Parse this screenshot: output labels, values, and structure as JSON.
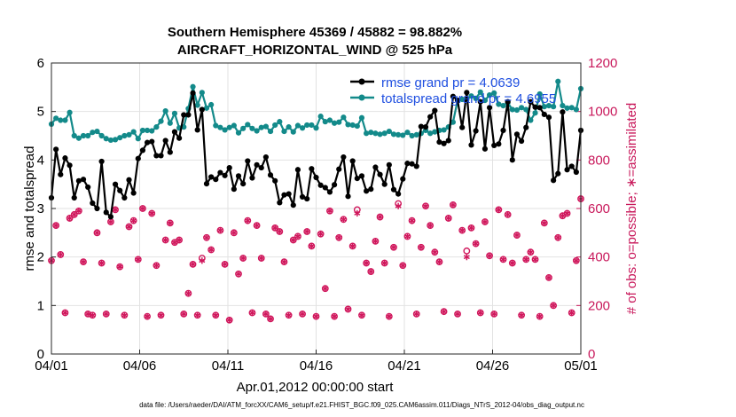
{
  "chart_data": {
    "type": "line",
    "title_line1": "Southern Hemisphere 45369 / 45882 = 98.882%",
    "title_line2": "AIRCRAFT_HORIZONTAL_WIND @ 525 hPa",
    "xlabel": "Apr.01,2012 00:00:00 start",
    "ylabel_left": "rmse and totalspread",
    "ylabel_right": "# of obs: o=possible; ∗=assimilated",
    "footer": "data file: /Users/raeder/DAI/ATM_forcXX/CAM6_setup/f.e21.FHIST_BGC.f09_025.CAM6assim.011/Diags_NTrS_2012-04/obs_diag_output.nc",
    "x_ticks": [
      "04/01",
      "04/06",
      "04/11",
      "04/16",
      "04/21",
      "04/26",
      "05/01"
    ],
    "x_tick_days": [
      0,
      5,
      10,
      15,
      20,
      25,
      30
    ],
    "xlim_days": [
      0,
      30
    ],
    "ylim_left": [
      0,
      6
    ],
    "y_ticks_left": [
      "0",
      "1",
      "2",
      "3",
      "4",
      "5",
      "6"
    ],
    "ylim_right": [
      0,
      1200
    ],
    "y_ticks_right": [
      "0",
      "200",
      "400",
      "600",
      "800",
      "1000",
      "1200"
    ],
    "grid": true,
    "legend_position": "top-right",
    "colors": {
      "rmse": "#000000",
      "spread": "#138a8a",
      "obs": "#d0175c"
    },
    "series": [
      {
        "name": "rmse grand pr = 4.0639",
        "axis": "left",
        "values": [
          3.22,
          4.22,
          3.7,
          4.04,
          3.89,
          3.22,
          3.57,
          3.6,
          3.44,
          3.11,
          3.0,
          3.97,
          2.92,
          2.83,
          3.5,
          3.37,
          3.22,
          3.59,
          3.32,
          4.03,
          4.2,
          4.36,
          4.38,
          4.09,
          4.09,
          4.4,
          4.16,
          4.58,
          4.45,
          4.93,
          4.93,
          5.38,
          4.62,
          5.04,
          3.51,
          3.65,
          3.6,
          3.74,
          3.68,
          3.84,
          3.4,
          3.67,
          3.51,
          3.98,
          3.63,
          3.9,
          3.84,
          4.06,
          3.69,
          3.57,
          3.12,
          3.28,
          3.3,
          3.07,
          3.8,
          3.24,
          3.2,
          3.82,
          3.64,
          3.48,
          3.43,
          3.34,
          3.49,
          3.81,
          4.06,
          3.25,
          3.98,
          3.62,
          3.67,
          3.36,
          3.4,
          3.85,
          3.7,
          3.5,
          3.9,
          3.39,
          3.3,
          3.61,
          3.93,
          3.92,
          3.87,
          4.69,
          4.68,
          4.89,
          5.02,
          4.37,
          4.34,
          4.4,
          5.31,
          5.23,
          4.67,
          5.39,
          4.31,
          4.6,
          5.2,
          4.23,
          5.08,
          4.3,
          4.33,
          4.61,
          5.2,
          4.0,
          4.53,
          4.39,
          4.67,
          5.2,
          5.09,
          5.08,
          4.94,
          4.88,
          3.58,
          3.72,
          4.99,
          3.8,
          3.87,
          3.75,
          4.61
        ]
      },
      {
        "name": "totalspread grand pr = 4.6955",
        "axis": "left",
        "values": [
          4.74,
          4.86,
          4.82,
          4.82,
          4.98,
          4.5,
          4.45,
          4.5,
          4.5,
          4.57,
          4.59,
          4.5,
          4.44,
          4.41,
          4.42,
          4.46,
          4.5,
          4.52,
          4.58,
          4.44,
          4.61,
          4.61,
          4.6,
          4.68,
          4.8,
          5.01,
          4.76,
          4.96,
          4.66,
          4.68,
          5.06,
          5.51,
          5.13,
          5.39,
          5.07,
          5.14,
          4.71,
          4.67,
          4.62,
          4.67,
          4.71,
          4.56,
          4.65,
          4.73,
          4.65,
          4.6,
          4.67,
          4.69,
          4.59,
          4.72,
          4.79,
          4.59,
          4.68,
          4.58,
          4.71,
          4.66,
          4.72,
          4.72,
          4.66,
          4.9,
          4.79,
          4.82,
          4.76,
          4.78,
          4.88,
          4.73,
          4.72,
          4.7,
          4.87,
          4.55,
          4.57,
          4.55,
          4.53,
          4.55,
          4.59,
          4.53,
          4.52,
          4.51,
          4.57,
          4.5,
          4.52,
          4.55,
          4.61,
          4.55,
          4.58,
          4.61,
          4.62,
          4.68,
          4.78,
          5.23,
          5.25,
          5.24,
          5.32,
          5.27,
          5.4,
          5.23,
          5.34,
          5.38,
          5.15,
          5.12,
          5.18,
          5.04,
          5.03,
          5.08,
          5.04,
          4.82,
          4.97,
          5.36,
          5.1,
          5.12,
          5.1,
          5.62,
          5.12,
          5.07,
          5.08,
          5.04,
          5.47
        ]
      },
      {
        "name": "# obs possible",
        "axis": "right",
        "marker": "o",
        "values": [
          385,
          530,
          410,
          170,
          560,
          575,
          590,
          380,
          165,
          160,
          500,
          375,
          165,
          545,
          595,
          360,
          160,
          525,
          550,
          390,
          600,
          155,
          580,
          365,
          160,
          470,
          540,
          460,
          470,
          165,
          250,
          370,
          160,
          395,
          480,
          430,
          160,
          510,
          370,
          140,
          500,
          330,
          395,
          550,
          170,
          530,
          395,
          165,
          145,
          520,
          505,
          380,
          160,
          470,
          485,
          165,
          505,
          445,
          155,
          495,
          270,
          590,
          155,
          480,
          555,
          185,
          445,
          595,
          160,
          375,
          340,
          465,
          565,
          375,
          155,
          440,
          620,
          365,
          485,
          550,
          165,
          440,
          610,
          530,
          420,
          380,
          175,
          560,
          615,
          165,
          510,
          425,
          520,
          455,
          170,
          545,
          405,
          165,
          595,
          390,
          575,
          375,
          490,
          160,
          390,
          420,
          390,
          155,
          540,
          315,
          200,
          480,
          570,
          580,
          170,
          385,
          640
        ]
      },
      {
        "name": "# obs assimilated",
        "axis": "right",
        "marker": "*",
        "values": [
          385,
          530,
          410,
          170,
          560,
          575,
          590,
          380,
          165,
          160,
          500,
          375,
          165,
          545,
          595,
          360,
          160,
          525,
          550,
          390,
          600,
          155,
          580,
          365,
          160,
          470,
          540,
          460,
          470,
          165,
          250,
          370,
          160,
          385,
          480,
          430,
          160,
          510,
          370,
          140,
          500,
          330,
          395,
          550,
          170,
          530,
          395,
          165,
          145,
          520,
          505,
          380,
          160,
          470,
          485,
          165,
          505,
          445,
          155,
          495,
          270,
          590,
          155,
          480,
          555,
          185,
          445,
          580,
          160,
          375,
          340,
          465,
          565,
          375,
          155,
          440,
          610,
          365,
          485,
          550,
          165,
          440,
          610,
          530,
          420,
          380,
          175,
          560,
          615,
          165,
          510,
          400,
          520,
          455,
          170,
          545,
          405,
          165,
          595,
          390,
          575,
          375,
          490,
          160,
          390,
          420,
          390,
          155,
          540,
          315,
          200,
          480,
          570,
          580,
          170,
          385,
          640
        ]
      }
    ]
  }
}
